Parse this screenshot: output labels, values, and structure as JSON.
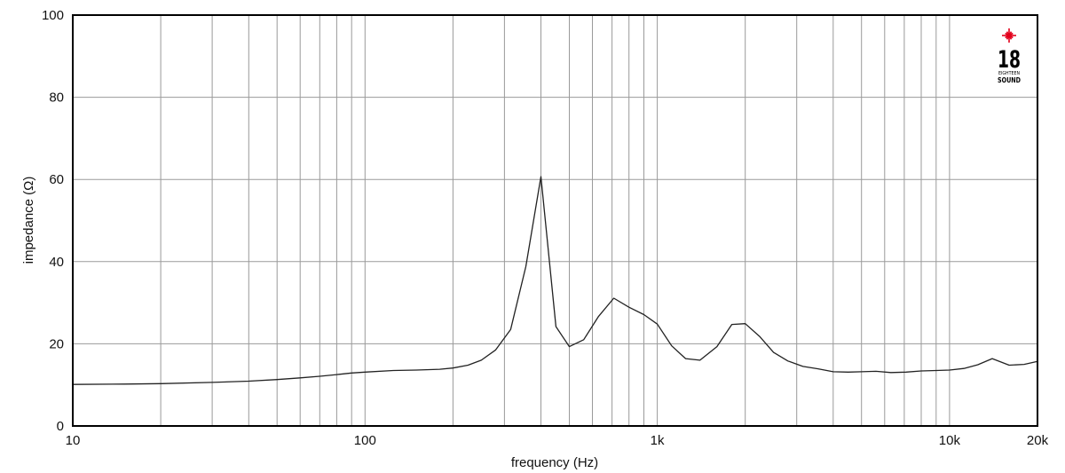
{
  "chart_data": {
    "type": "line",
    "title": "",
    "xlabel": "frequency (Hz)",
    "ylabel": "impedance (Ω)",
    "x_scale": "log",
    "xlim": [
      10,
      20000
    ],
    "ylim": [
      0,
      100
    ],
    "grid": true,
    "x_ticks": [
      {
        "value": 10,
        "label": "10"
      },
      {
        "value": 100,
        "label": "100"
      },
      {
        "value": 1000,
        "label": "1k"
      },
      {
        "value": 10000,
        "label": "10k"
      },
      {
        "value": 20000,
        "label": "20k"
      }
    ],
    "y_ticks": [
      {
        "value": 0,
        "label": "0"
      },
      {
        "value": 20,
        "label": "20"
      },
      {
        "value": 40,
        "label": "40"
      },
      {
        "value": 60,
        "label": "60"
      },
      {
        "value": 80,
        "label": "80"
      },
      {
        "value": 100,
        "label": "100"
      }
    ],
    "series": [
      {
        "color": "#222222",
        "x": [
          10,
          15,
          20,
          30,
          40,
          50,
          60,
          70,
          80,
          90,
          100,
          125,
          150,
          180,
          200,
          225,
          250,
          280,
          315,
          355,
          400,
          450,
          500,
          560,
          630,
          710,
          800,
          900,
          1000,
          1120,
          1250,
          1400,
          1600,
          1800,
          2000,
          2240,
          2500,
          2800,
          3150,
          3550,
          4000,
          4500,
          5000,
          5600,
          6300,
          7100,
          8000,
          9000,
          10000,
          11200,
          12500,
          14000,
          16000,
          18000,
          20000
        ],
        "y": [
          10.1,
          10.2,
          10.3,
          10.6,
          10.9,
          11.3,
          11.7,
          12.1,
          12.5,
          12.9,
          13.1,
          13.5,
          13.6,
          13.8,
          14.1,
          14.8,
          16.0,
          18.5,
          23.5,
          38.8,
          60.7,
          24.2,
          19.3,
          21.0,
          26.7,
          31.1,
          28.9,
          27.1,
          24.8,
          19.5,
          16.4,
          16.0,
          19.3,
          24.7,
          24.9,
          21.8,
          17.9,
          15.8,
          14.5,
          13.9,
          13.2,
          13.1,
          13.2,
          13.3,
          13.0,
          13.1,
          13.4,
          13.5,
          13.6,
          14.0,
          14.9,
          16.4,
          14.8,
          15.0,
          15.7
        ]
      }
    ]
  },
  "logo": {
    "number": "18",
    "line1": "EIGHTEEN",
    "line2": "SOUND",
    "star_color": "#e3001b"
  }
}
